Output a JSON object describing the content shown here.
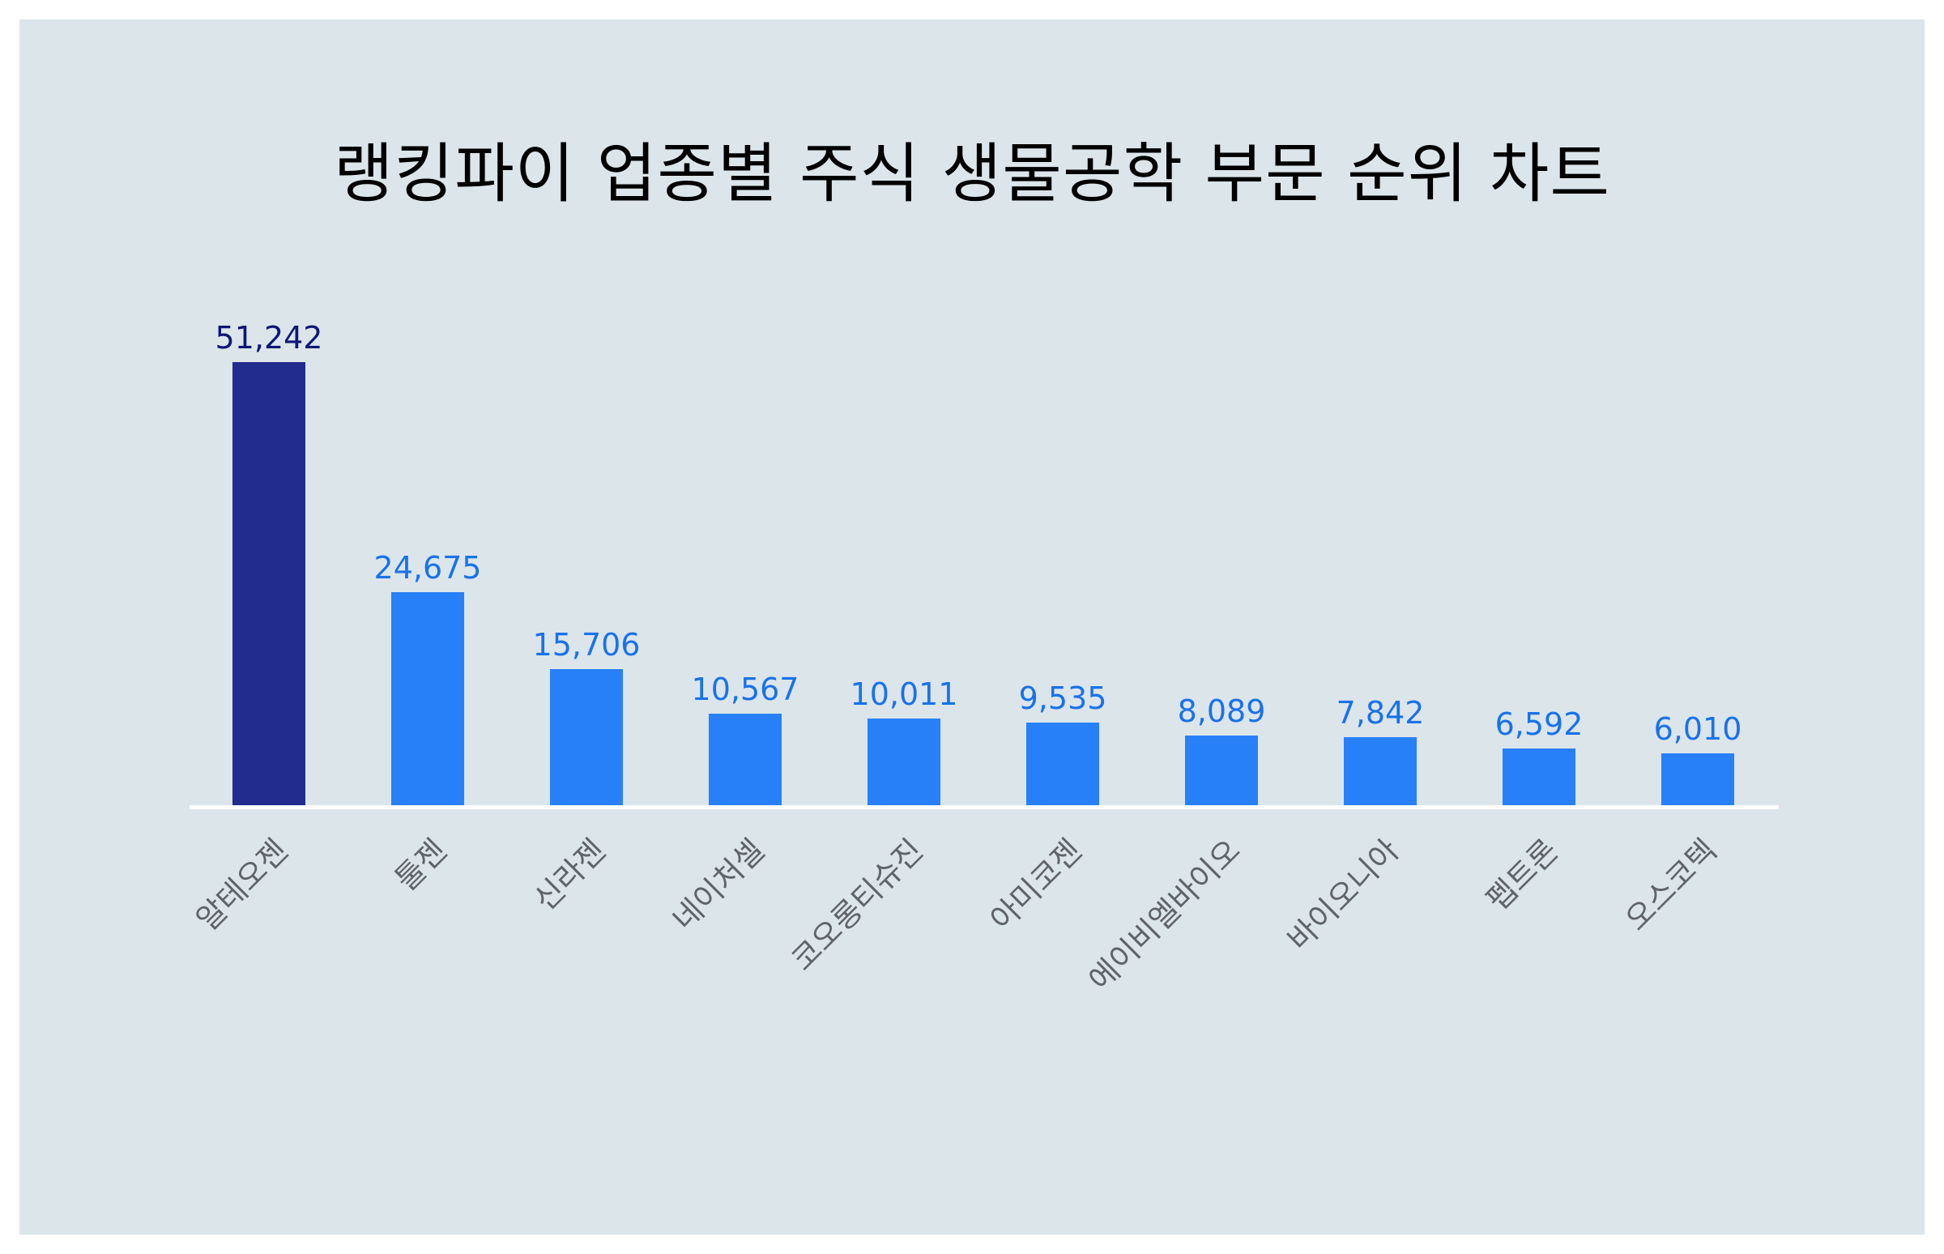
{
  "title": "랭킹파이 업종별 주식 생물공학 부문 순위 차트",
  "colors": {
    "background": "#dbe5ea",
    "highlight_bar": "#222b8e",
    "highlight_label": "#0e1675",
    "bar": "#2880f8",
    "label": "#1a72e8",
    "axis": "#ffffff",
    "tick_label": "#606468"
  },
  "chart_data": {
    "type": "bar",
    "title": "랭킹파이 업종별 주식 생물공학 부문 순위 차트",
    "xlabel": "",
    "ylabel": "",
    "categories": [
      "알테오젠",
      "툴젠",
      "신라젠",
      "네이처셀",
      "코오롱티슈진",
      "아미코젠",
      "에이비엘바이오",
      "바이오니아",
      "펩트론",
      "오스코텍"
    ],
    "values": [
      51242,
      24675,
      15706,
      10567,
      10011,
      9535,
      8089,
      7842,
      6592,
      6010
    ],
    "value_labels": [
      "51,242",
      "24,675",
      "15,706",
      "10,567",
      "10,011",
      "9,535",
      "8,089",
      "7,842",
      "6,592",
      "6,010"
    ],
    "highlight_index": 0,
    "grid": false,
    "legend": "none",
    "ylim": [
      0,
      51242
    ]
  }
}
